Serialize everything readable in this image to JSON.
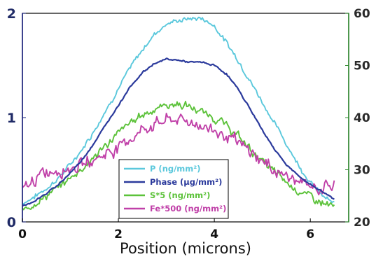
{
  "chart_data": {
    "type": "line",
    "title": "",
    "xlabel": "Position (microns)",
    "ylabel": "",
    "y2label": "",
    "xlim": [
      0,
      6.8
    ],
    "ylim": [
      0,
      2
    ],
    "y2lim": [
      20,
      60
    ],
    "x_ticks": [
      "0",
      "2",
      "4",
      "6"
    ],
    "y_ticks": [
      "0",
      "1",
      "2"
    ],
    "y2_ticks": [
      "20",
      "30",
      "40",
      "50",
      "60"
    ],
    "legend_position": "bottom-center",
    "colors": {
      "left_axis": "#1a237e",
      "right_axis": "#2e8b2e"
    },
    "series": [
      {
        "name": "P (ng/mm²)",
        "color": "#5bc8dc",
        "axis": "left",
        "x": [
          0,
          0.25,
          0.5,
          0.75,
          1.0,
          1.25,
          1.5,
          1.75,
          2.0,
          2.25,
          2.5,
          2.75,
          3.0,
          3.25,
          3.5,
          3.75,
          4.0,
          4.25,
          4.5,
          4.75,
          5.0,
          5.25,
          5.5,
          5.75,
          6.0,
          6.25,
          6.5
        ],
        "values": [
          0.18,
          0.24,
          0.32,
          0.42,
          0.55,
          0.7,
          0.88,
          1.08,
          1.28,
          1.48,
          1.65,
          1.8,
          1.9,
          1.93,
          1.95,
          1.95,
          1.88,
          1.72,
          1.55,
          1.35,
          1.15,
          0.95,
          0.75,
          0.55,
          0.38,
          0.25,
          0.17
        ]
      },
      {
        "name": "Phase (µg/mm²)",
        "color": "#2b3a9c",
        "axis": "left",
        "x": [
          0,
          0.25,
          0.5,
          0.75,
          1.0,
          1.25,
          1.5,
          1.75,
          2.0,
          2.25,
          2.5,
          2.75,
          3.0,
          3.25,
          3.5,
          3.75,
          4.0,
          4.25,
          4.5,
          4.75,
          5.0,
          5.25,
          5.5,
          5.75,
          6.0,
          6.25,
          6.5
        ],
        "values": [
          0.15,
          0.2,
          0.27,
          0.36,
          0.47,
          0.6,
          0.76,
          0.94,
          1.12,
          1.3,
          1.43,
          1.52,
          1.56,
          1.55,
          1.53,
          1.53,
          1.5,
          1.42,
          1.27,
          1.08,
          0.88,
          0.7,
          0.55,
          0.44,
          0.36,
          0.29,
          0.22
        ]
      },
      {
        "name": "S*5 (ng/mm²)",
        "color": "#5cc23a",
        "axis": "left",
        "x": [
          0,
          0.25,
          0.5,
          0.75,
          1.0,
          1.25,
          1.5,
          1.75,
          2.0,
          2.25,
          2.5,
          2.75,
          3.0,
          3.25,
          3.5,
          3.75,
          4.0,
          4.25,
          4.5,
          4.75,
          5.0,
          5.25,
          5.5,
          5.75,
          6.0,
          6.25,
          6.5
        ],
        "values": [
          0.12,
          0.18,
          0.25,
          0.33,
          0.42,
          0.52,
          0.62,
          0.74,
          0.85,
          0.95,
          1.03,
          1.08,
          1.12,
          1.13,
          1.1,
          1.05,
          1.0,
          0.92,
          0.82,
          0.7,
          0.58,
          0.48,
          0.38,
          0.3,
          0.24,
          0.18,
          0.14
        ]
      },
      {
        "name": "Fe*500 (ng/mm²)",
        "color": "#c040a8",
        "axis": "left",
        "x": [
          0,
          0.25,
          0.5,
          0.75,
          1.0,
          1.25,
          1.5,
          1.75,
          2.0,
          2.25,
          2.5,
          2.75,
          3.0,
          3.25,
          3.5,
          3.75,
          4.0,
          4.25,
          4.5,
          4.75,
          5.0,
          5.25,
          5.5,
          5.75,
          6.0,
          6.25,
          6.5
        ],
        "values": [
          0.3,
          0.4,
          0.48,
          0.5,
          0.52,
          0.55,
          0.6,
          0.66,
          0.72,
          0.8,
          0.88,
          0.94,
          0.98,
          0.98,
          0.96,
          0.92,
          0.88,
          0.82,
          0.75,
          0.67,
          0.58,
          0.5,
          0.44,
          0.38,
          0.34,
          0.32,
          0.36
        ]
      }
    ]
  }
}
